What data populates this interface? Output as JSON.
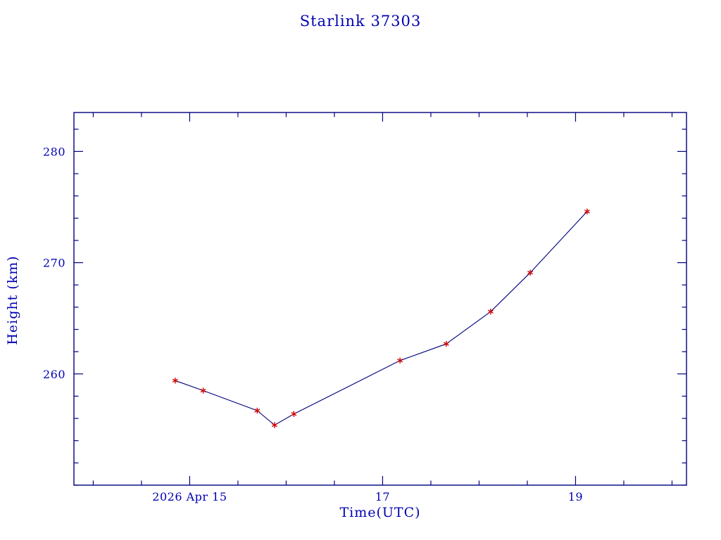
{
  "page": {
    "title": "Starlink 37303"
  },
  "colors": {
    "axis": "#000080",
    "text": "#0000b3",
    "line": "#000080",
    "marker": "#cc0000"
  },
  "chart_data": {
    "type": "line",
    "title": "Starlink 37303",
    "xlabel": "Time(UTC)",
    "ylabel": "Height (km)",
    "xlim": [
      13.8,
      20.15
    ],
    "ylim": [
      250.0,
      283.5
    ],
    "x_major_ticks": [
      15,
      17,
      19
    ],
    "x_tick_labels": [
      "2026 Apr 15",
      "17",
      "19"
    ],
    "x_minor_step": 0.5,
    "y_major_ticks": [
      260,
      270,
      280
    ],
    "y_tick_labels": [
      "260",
      "270",
      "280"
    ],
    "y_minor_step": 2,
    "grid": false,
    "legend": "none",
    "series": [
      {
        "name": "height",
        "marker": "asterisk",
        "x": [
          14.85,
          15.14,
          15.7,
          15.88,
          16.08,
          17.18,
          17.66,
          18.12,
          18.53,
          19.12
        ],
        "y": [
          259.4,
          258.5,
          256.7,
          255.4,
          256.4,
          261.2,
          262.7,
          265.6,
          269.1,
          274.6
        ]
      }
    ]
  },
  "layout_note": "height vs time decay plot"
}
